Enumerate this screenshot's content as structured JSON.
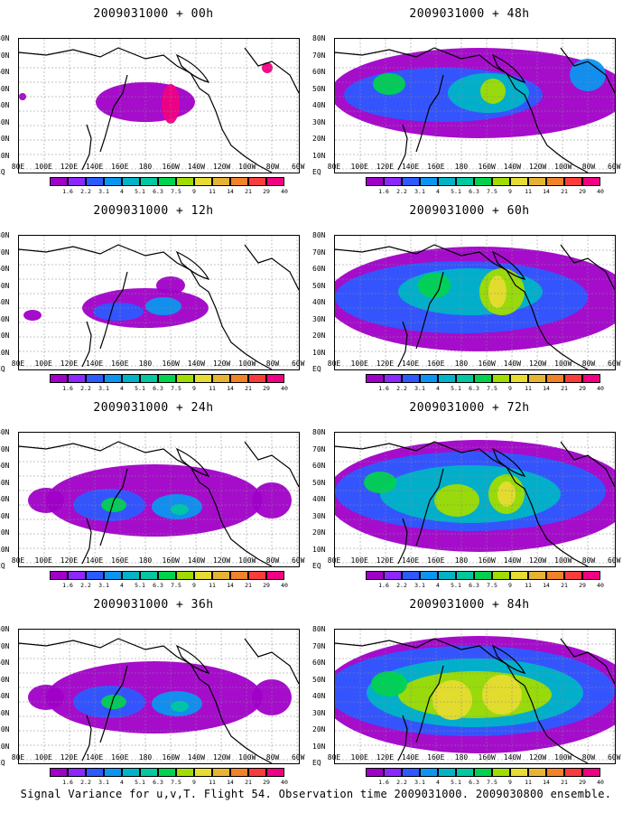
{
  "panels": [
    {
      "id": "p00",
      "title": "2009031000 + 00h",
      "col": 0,
      "row": 0,
      "level": 0
    },
    {
      "id": "p48",
      "title": "2009031000 + 48h",
      "col": 1,
      "row": 0,
      "level": 3
    },
    {
      "id": "p12",
      "title": "2009031000 + 12h",
      "col": 0,
      "row": 1,
      "level": 1
    },
    {
      "id": "p60",
      "title": "2009031000 + 60h",
      "col": 1,
      "row": 1,
      "level": 4
    },
    {
      "id": "p24",
      "title": "2009031000 + 24h",
      "col": 0,
      "row": 2,
      "level": 2
    },
    {
      "id": "p72",
      "title": "2009031000 + 72h",
      "col": 1,
      "row": 2,
      "level": 5
    },
    {
      "id": "p36",
      "title": "2009031000 + 36h",
      "col": 0,
      "row": 3,
      "level": 2
    },
    {
      "id": "p84",
      "title": "2009031000 + 84h",
      "col": 1,
      "row": 3,
      "level": 6
    }
  ],
  "x_labels": [
    "80E",
    "100E",
    "120E",
    "140E",
    "160E",
    "180",
    "160W",
    "140W",
    "120W",
    "100W",
    "80W",
    "60W"
  ],
  "y_labels": [
    "80N",
    "70N",
    "60N",
    "50N",
    "40N",
    "30N",
    "20N",
    "10N",
    "EQ"
  ],
  "colorbar": {
    "labels": [
      "1.6",
      "2.2",
      "3.1",
      "4",
      "5.1",
      "6.3",
      "7.5",
      "9",
      "11",
      "14",
      "21",
      "29",
      "40"
    ],
    "colors": [
      "#a000c8",
      "#8c28ff",
      "#2d5aff",
      "#0a96f0",
      "#00b4c8",
      "#00c8a0",
      "#00d250",
      "#a0dc00",
      "#e6dc32",
      "#e6b432",
      "#f08228",
      "#fa3c3c",
      "#f00082"
    ]
  },
  "footer_text": "Signal Variance for u,v,T. Flight 54. Observation time 2009031000. 2009030800 ensemble."
}
